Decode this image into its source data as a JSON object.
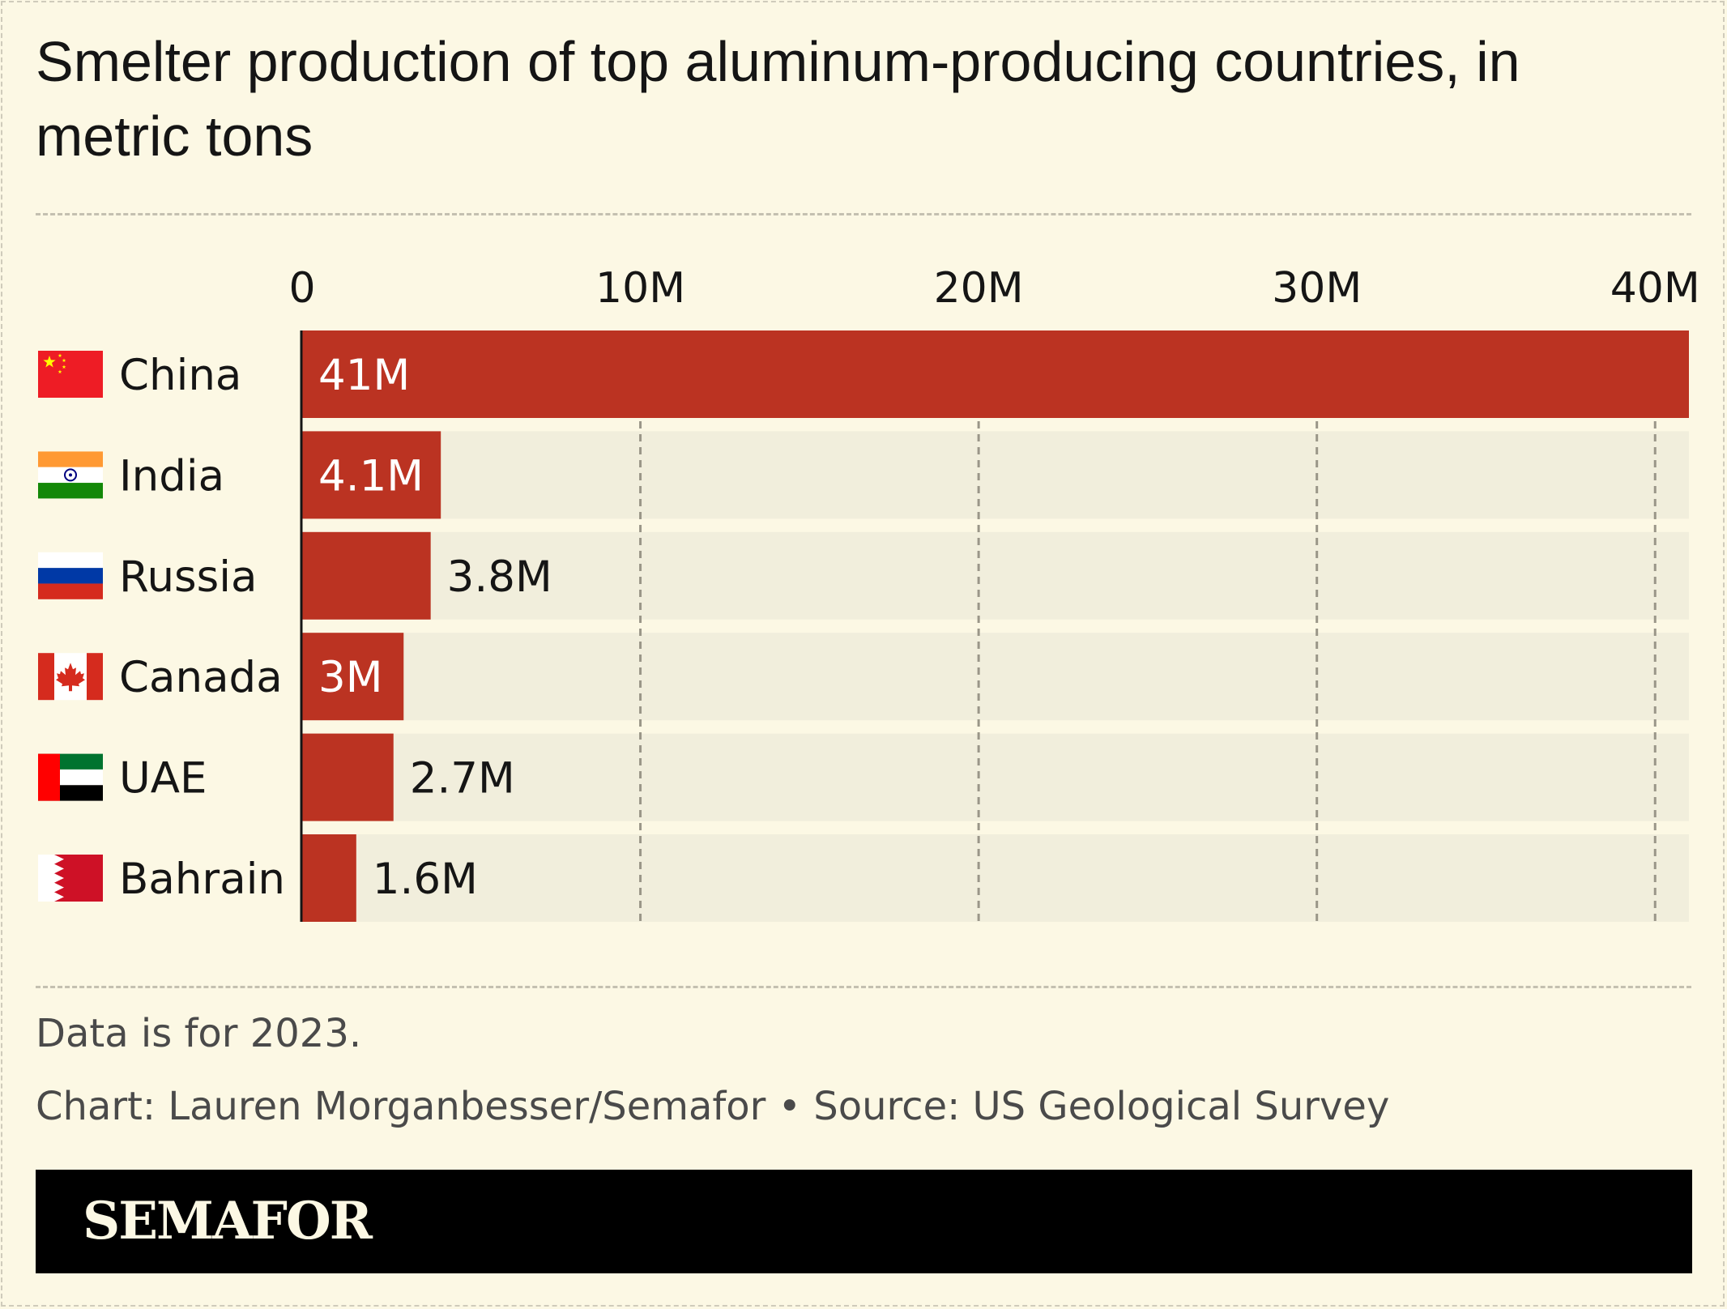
{
  "title": "Smelter production of top aluminum-producing countries, in metric tons",
  "note": "Data is for 2023.",
  "credit": "Chart: Lauren Morganbesser/Semafor • Source: US Geological Survey",
  "brand": "SEMAFOR",
  "colors": {
    "background": "#fcf8e4",
    "bar": "#bb3322",
    "track": "#f1eedc",
    "gridline": "#9a9688",
    "label_inside": "#ffffff",
    "label_outside": "#151515"
  },
  "chart_data": {
    "type": "bar",
    "orientation": "horizontal",
    "categories": [
      "China",
      "India",
      "Russia",
      "Canada",
      "UAE",
      "Bahrain"
    ],
    "flags": [
      "china-flag-icon",
      "india-flag-icon",
      "russia-flag-icon",
      "canada-flag-icon",
      "uae-flag-icon",
      "bahrain-flag-icon"
    ],
    "values": [
      41000000,
      4100000,
      3800000,
      3000000,
      2700000,
      1600000
    ],
    "value_labels": [
      "41M",
      "4.1M",
      "3.8M",
      "3M",
      "2.7M",
      "1.6M"
    ],
    "label_inside": [
      true,
      true,
      false,
      true,
      false,
      false
    ],
    "xlim": [
      0,
      41000000
    ],
    "xticks": [
      0,
      10000000,
      20000000,
      30000000,
      40000000
    ],
    "xtick_labels": [
      "0",
      "10M",
      "20M",
      "30M",
      "40M"
    ],
    "grid": true,
    "axis_position": "top"
  }
}
